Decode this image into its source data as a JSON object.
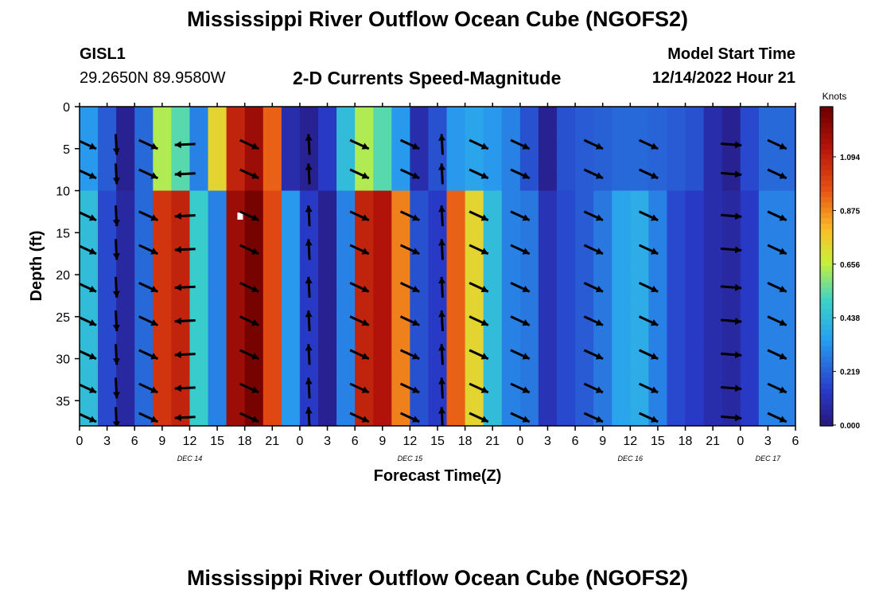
{
  "title": "Mississippi River Outflow Ocean Cube (NGOFS2)",
  "station": {
    "id": "GISL1",
    "coords": "29.2650N  89.9580W"
  },
  "subtitle": "2-D Currents Speed-Magnitude",
  "model": {
    "label": "Model Start Time",
    "value": "12/14/2022 Hour 21"
  },
  "footer_title": "Mississippi River Outflow Ocean Cube (NGOFS2)",
  "chart_data": {
    "type": "heatmap",
    "title": "2-D Currents Speed-Magnitude",
    "xlabel": "Forecast Time(Z)",
    "ylabel": "Depth (ft)",
    "x_tick_labels": [
      "0",
      "3",
      "6",
      "9",
      "12",
      "15",
      "18",
      "21",
      "0",
      "3",
      "6",
      "9",
      "12",
      "15",
      "18",
      "21",
      "0",
      "3",
      "6",
      "9",
      "12",
      "15",
      "18",
      "21",
      "0",
      "3",
      "6"
    ],
    "day_labels": [
      {
        "label": "DEC 14",
        "at_hour": 12
      },
      {
        "label": "DEC 15",
        "at_hour": 36
      },
      {
        "label": "DEC 16",
        "at_hour": 60
      },
      {
        "label": "DEC 17",
        "at_hour": 75
      }
    ],
    "x_range_hours": [
      0,
      78
    ],
    "y_ticks": [
      0,
      5,
      10,
      15,
      20,
      25,
      30,
      35
    ],
    "y_range_ft": [
      0,
      38
    ],
    "colorbar": {
      "unit": "Knots",
      "ticks": [
        "1.094",
        "0.875",
        "0.656",
        "0.438",
        "0.219",
        "0.000"
      ],
      "range": [
        0,
        1.3
      ]
    },
    "speed_columns": [
      {
        "hour": 0,
        "surface": 0.35,
        "deep": 0.45
      },
      {
        "hour": 2,
        "surface": 0.22,
        "deep": 0.18
      },
      {
        "hour": 4,
        "surface": 0.05,
        "deep": 0.08
      },
      {
        "hour": 6,
        "surface": 0.25,
        "deep": 0.25
      },
      {
        "hour": 8,
        "surface": 0.65,
        "deep": 1.05
      },
      {
        "hour": 10,
        "surface": 0.55,
        "deep": 1.1
      },
      {
        "hour": 12,
        "surface": 0.3,
        "deep": 0.5
      },
      {
        "hour": 14,
        "surface": 0.75,
        "deep": 0.3
      },
      {
        "hour": 16,
        "surface": 1.1,
        "deep": 1.2
      },
      {
        "hour": 18,
        "surface": 1.2,
        "deep": 1.28
      },
      {
        "hour": 20,
        "surface": 0.95,
        "deep": 1.0
      },
      {
        "hour": 22,
        "surface": 0.1,
        "deep": 0.35
      },
      {
        "hour": 24,
        "surface": 0.05,
        "deep": 0.15
      },
      {
        "hour": 26,
        "surface": 0.15,
        "deep": 0.05
      },
      {
        "hour": 28,
        "surface": 0.45,
        "deep": 0.3
      },
      {
        "hour": 30,
        "surface": 0.65,
        "deep": 1.1
      },
      {
        "hour": 32,
        "surface": 0.55,
        "deep": 1.15
      },
      {
        "hour": 34,
        "surface": 0.35,
        "deep": 0.9
      },
      {
        "hour": 36,
        "surface": 0.1,
        "deep": 0.2
      },
      {
        "hour": 38,
        "surface": 0.2,
        "deep": 0.15
      },
      {
        "hour": 40,
        "surface": 0.35,
        "deep": 0.95
      },
      {
        "hour": 42,
        "surface": 0.38,
        "deep": 0.75
      },
      {
        "hour": 44,
        "surface": 0.35,
        "deep": 0.45
      },
      {
        "hour": 46,
        "surface": 0.3,
        "deep": 0.3
      },
      {
        "hour": 48,
        "surface": 0.2,
        "deep": 0.28
      },
      {
        "hour": 50,
        "surface": 0.05,
        "deep": 0.12
      },
      {
        "hour": 52,
        "surface": 0.2,
        "deep": 0.18
      },
      {
        "hour": 54,
        "surface": 0.22,
        "deep": 0.22
      },
      {
        "hour": 56,
        "surface": 0.23,
        "deep": 0.28
      },
      {
        "hour": 58,
        "surface": 0.25,
        "deep": 0.38
      },
      {
        "hour": 60,
        "surface": 0.25,
        "deep": 0.4
      },
      {
        "hour": 62,
        "surface": 0.24,
        "deep": 0.3
      },
      {
        "hour": 64,
        "surface": 0.22,
        "deep": 0.18
      },
      {
        "hour": 66,
        "surface": 0.2,
        "deep": 0.15
      },
      {
        "hour": 68,
        "surface": 0.1,
        "deep": 0.1
      },
      {
        "hour": 70,
        "surface": 0.05,
        "deep": 0.08
      },
      {
        "hour": 72,
        "surface": 0.18,
        "deep": 0.15
      },
      {
        "hour": 74,
        "surface": 0.25,
        "deep": 0.3
      }
    ],
    "vector_columns": [
      {
        "hour": 0.8,
        "dir": "se"
      },
      {
        "hour": 4,
        "dir": "s"
      },
      {
        "hour": 7.5,
        "dir": "se"
      },
      {
        "hour": 11.5,
        "dir": "w"
      },
      {
        "hour": 18.5,
        "dir": "se"
      },
      {
        "hour": 25,
        "dir": "n"
      },
      {
        "hour": 30.5,
        "dir": "se"
      },
      {
        "hour": 36,
        "dir": "se"
      },
      {
        "hour": 39.5,
        "dir": "n"
      },
      {
        "hour": 43.5,
        "dir": "se"
      },
      {
        "hour": 48,
        "dir": "se"
      },
      {
        "hour": 56,
        "dir": "se"
      },
      {
        "hour": 62,
        "dir": "se"
      },
      {
        "hour": 71,
        "dir": "e"
      },
      {
        "hour": 76,
        "dir": "se"
      }
    ]
  }
}
